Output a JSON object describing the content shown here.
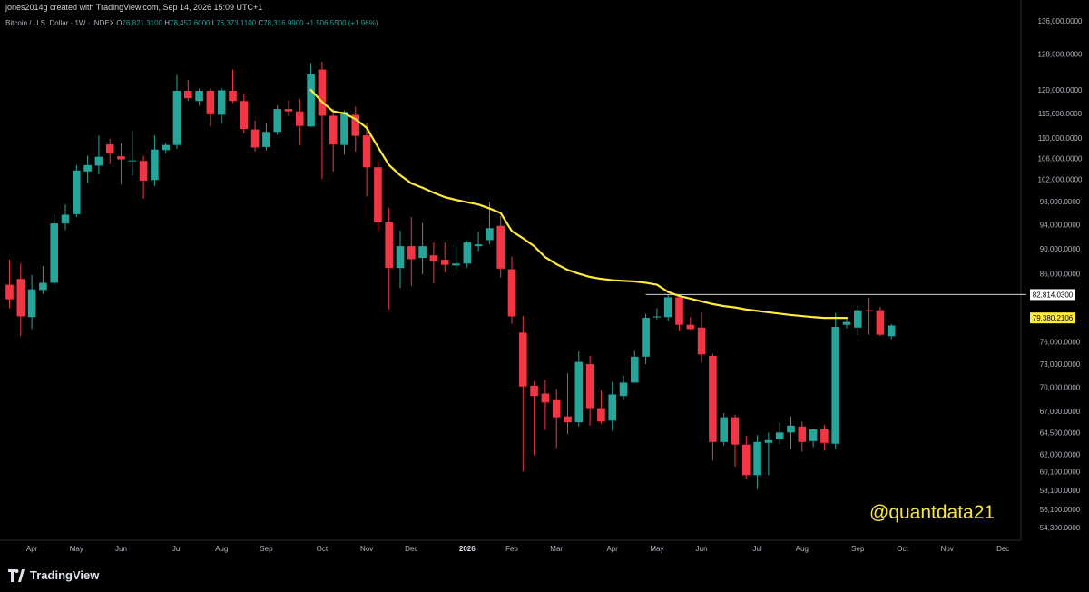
{
  "header": {
    "creator_line": "jones2014g created with TradingView.com, Sep 14, 2026 15:09 UTC+1",
    "symbol": "Bitcoin / U.S. Dollar · 1W · INDEX",
    "open_label": "O",
    "open": "76,821.3100",
    "high_label": "H",
    "high": "78,457.6000",
    "low_label": "L",
    "low": "76,373.1100",
    "close_label": "C",
    "close": "78,316.9900",
    "change": "+1,506.5500 (+1.96%)"
  },
  "footer": {
    "brand": "TradingView",
    "brand_icon": "tradingview-logo-icon"
  },
  "watermark": "@quantdata21",
  "colors": {
    "up": "#26a69a",
    "down": "#f23645",
    "ma": "#ffeb3b",
    "level_line": "#d1d4dc",
    "axis_text": "#b2b5be"
  },
  "chart_data": {
    "type": "candlestick",
    "title": "Bitcoin / U.S. Dollar · 1W · INDEX",
    "y_scale": "log",
    "ylim": [
      53500,
      138000
    ],
    "y_ticks": [
      {
        "value": 136000,
        "label": "136,000.0000"
      },
      {
        "value": 128000,
        "label": "128,000.0000"
      },
      {
        "value": 120000,
        "label": "120,000.0000"
      },
      {
        "value": 115000,
        "label": "115,000.0000"
      },
      {
        "value": 110000,
        "label": "110,000.0000"
      },
      {
        "value": 106000,
        "label": "106,000.0000"
      },
      {
        "value": 102000,
        "label": "102,000.0000"
      },
      {
        "value": 98000,
        "label": "98,000.0000"
      },
      {
        "value": 94000,
        "label": "94,000.0000"
      },
      {
        "value": 90000,
        "label": "90,000.0000"
      },
      {
        "value": 86000,
        "label": "86,000.0000"
      },
      {
        "value": 76000,
        "label": "76,000.0000"
      },
      {
        "value": 73000,
        "label": "73,000.0000"
      },
      {
        "value": 70000,
        "label": "70,000.0000"
      },
      {
        "value": 67000,
        "label": "67,000.0000"
      },
      {
        "value": 64500,
        "label": "64,500.0000"
      },
      {
        "value": 62000,
        "label": "62,000.0000"
      },
      {
        "value": 60100,
        "label": "60,100.0000"
      },
      {
        "value": 58100,
        "label": "58,100.0000"
      },
      {
        "value": 56100,
        "label": "56,100.0000"
      },
      {
        "value": 54300,
        "label": "54,300.0000"
      }
    ],
    "x_ticks": [
      {
        "index": 2,
        "label": "Apr"
      },
      {
        "index": 6,
        "label": "May"
      },
      {
        "index": 10,
        "label": "Jun"
      },
      {
        "index": 15,
        "label": "Jul"
      },
      {
        "index": 19,
        "label": "Aug"
      },
      {
        "index": 23,
        "label": "Sep"
      },
      {
        "index": 28,
        "label": "Oct"
      },
      {
        "index": 32,
        "label": "Nov"
      },
      {
        "index": 36,
        "label": "Dec"
      },
      {
        "index": 41,
        "label": "2026",
        "bold": true
      },
      {
        "index": 45,
        "label": "Feb"
      },
      {
        "index": 49,
        "label": "Mar"
      },
      {
        "index": 54,
        "label": "Apr"
      },
      {
        "index": 58,
        "label": "May"
      },
      {
        "index": 62,
        "label": "Jun"
      },
      {
        "index": 67,
        "label": "Jul"
      },
      {
        "index": 71,
        "label": "Aug"
      },
      {
        "index": 76,
        "label": "Sep"
      },
      {
        "index": 80,
        "label": "Oct"
      },
      {
        "index": 84,
        "label": "Nov"
      },
      {
        "index": 89,
        "label": "Dec"
      }
    ],
    "candles": [
      {
        "o": 84300,
        "h": 88200,
        "l": 80800,
        "c": 82100
      },
      {
        "o": 85200,
        "h": 87600,
        "l": 76800,
        "c": 79600
      },
      {
        "o": 79500,
        "h": 85800,
        "l": 77800,
        "c": 83600
      },
      {
        "o": 83500,
        "h": 87200,
        "l": 82900,
        "c": 84600
      },
      {
        "o": 84600,
        "h": 95800,
        "l": 84200,
        "c": 94200
      },
      {
        "o": 94200,
        "h": 97500,
        "l": 93100,
        "c": 95700
      },
      {
        "o": 95800,
        "h": 104700,
        "l": 95300,
        "c": 103700
      },
      {
        "o": 103500,
        "h": 106500,
        "l": 101400,
        "c": 104700
      },
      {
        "o": 104600,
        "h": 110500,
        "l": 103000,
        "c": 106300
      },
      {
        "o": 108700,
        "h": 109800,
        "l": 104900,
        "c": 107000
      },
      {
        "o": 106400,
        "h": 108900,
        "l": 101100,
        "c": 105800
      },
      {
        "o": 105600,
        "h": 111400,
        "l": 102800,
        "c": 105600
      },
      {
        "o": 105500,
        "h": 106500,
        "l": 98500,
        "c": 101800
      },
      {
        "o": 101900,
        "h": 110500,
        "l": 100800,
        "c": 107700
      },
      {
        "o": 107600,
        "h": 108900,
        "l": 106900,
        "c": 108600
      },
      {
        "o": 108600,
        "h": 123300,
        "l": 107800,
        "c": 119800
      },
      {
        "o": 119800,
        "h": 122200,
        "l": 117600,
        "c": 118200
      },
      {
        "o": 117600,
        "h": 120300,
        "l": 116600,
        "c": 119800
      },
      {
        "o": 119800,
        "h": 120300,
        "l": 112300,
        "c": 114800
      },
      {
        "o": 114700,
        "h": 120400,
        "l": 112800,
        "c": 119900
      },
      {
        "o": 119800,
        "h": 124500,
        "l": 117200,
        "c": 117600
      },
      {
        "o": 117600,
        "h": 119000,
        "l": 110900,
        "c": 111800
      },
      {
        "o": 111700,
        "h": 113500,
        "l": 107300,
        "c": 108100
      },
      {
        "o": 108200,
        "h": 112900,
        "l": 107500,
        "c": 111200
      },
      {
        "o": 111200,
        "h": 116700,
        "l": 110600,
        "c": 115900
      },
      {
        "o": 115900,
        "h": 117700,
        "l": 114400,
        "c": 115400
      },
      {
        "o": 115400,
        "h": 118000,
        "l": 108600,
        "c": 112400
      },
      {
        "o": 112300,
        "h": 126000,
        "l": 112200,
        "c": 123400
      },
      {
        "o": 124500,
        "h": 126300,
        "l": 102100,
        "c": 114500
      },
      {
        "o": 114500,
        "h": 116000,
        "l": 103500,
        "c": 108700
      },
      {
        "o": 108600,
        "h": 115600,
        "l": 106700,
        "c": 115300
      },
      {
        "o": 114700,
        "h": 116400,
        "l": 107300,
        "c": 110400
      },
      {
        "o": 110500,
        "h": 113000,
        "l": 98900,
        "c": 104300
      },
      {
        "o": 104300,
        "h": 105500,
        "l": 92800,
        "c": 94400
      },
      {
        "o": 94400,
        "h": 96900,
        "l": 80600,
        "c": 86900
      },
      {
        "o": 86900,
        "h": 93000,
        "l": 83800,
        "c": 90400
      },
      {
        "o": 90400,
        "h": 95300,
        "l": 84100,
        "c": 88300
      },
      {
        "o": 88500,
        "h": 94300,
        "l": 85900,
        "c": 90400
      },
      {
        "o": 88900,
        "h": 91000,
        "l": 84500,
        "c": 88000
      },
      {
        "o": 88200,
        "h": 91000,
        "l": 86200,
        "c": 87400
      },
      {
        "o": 87300,
        "h": 90500,
        "l": 86500,
        "c": 87600
      },
      {
        "o": 87600,
        "h": 91200,
        "l": 87000,
        "c": 91000
      },
      {
        "o": 90400,
        "h": 92800,
        "l": 89600,
        "c": 90700
      },
      {
        "o": 91400,
        "h": 97900,
        "l": 90700,
        "c": 93400
      },
      {
        "o": 93800,
        "h": 95500,
        "l": 85400,
        "c": 86800
      },
      {
        "o": 86700,
        "h": 88700,
        "l": 78500,
        "c": 79600
      },
      {
        "o": 77300,
        "h": 79700,
        "l": 60100,
        "c": 70100
      },
      {
        "o": 70200,
        "h": 70800,
        "l": 61900,
        "c": 68900
      },
      {
        "o": 69200,
        "h": 70900,
        "l": 64800,
        "c": 68100
      },
      {
        "o": 68500,
        "h": 69800,
        "l": 62700,
        "c": 66300
      },
      {
        "o": 66400,
        "h": 71800,
        "l": 64300,
        "c": 65700
      },
      {
        "o": 65700,
        "h": 74700,
        "l": 65200,
        "c": 73300
      },
      {
        "o": 73000,
        "h": 74100,
        "l": 65300,
        "c": 67400
      },
      {
        "o": 67400,
        "h": 69600,
        "l": 65500,
        "c": 65800
      },
      {
        "o": 65900,
        "h": 70700,
        "l": 64700,
        "c": 69100
      },
      {
        "o": 68900,
        "h": 71500,
        "l": 68500,
        "c": 70600
      },
      {
        "o": 70600,
        "h": 74800,
        "l": 70600,
        "c": 74000
      },
      {
        "o": 74000,
        "h": 80000,
        "l": 73000,
        "c": 79400
      },
      {
        "o": 79500,
        "h": 80800,
        "l": 79200,
        "c": 79600
      },
      {
        "o": 79500,
        "h": 82800,
        "l": 79000,
        "c": 82400
      },
      {
        "o": 82400,
        "h": 82800,
        "l": 77600,
        "c": 78400
      },
      {
        "o": 78400,
        "h": 79500,
        "l": 77700,
        "c": 77800
      },
      {
        "o": 78000,
        "h": 80200,
        "l": 73200,
        "c": 74300
      },
      {
        "o": 74100,
        "h": 74400,
        "l": 61300,
        "c": 63400
      },
      {
        "o": 63400,
        "h": 66800,
        "l": 63000,
        "c": 66300
      },
      {
        "o": 66300,
        "h": 66600,
        "l": 60600,
        "c": 63100
      },
      {
        "o": 63100,
        "h": 64100,
        "l": 59300,
        "c": 59700
      },
      {
        "o": 59700,
        "h": 64200,
        "l": 58200,
        "c": 63400
      },
      {
        "o": 63300,
        "h": 64500,
        "l": 59700,
        "c": 63600
      },
      {
        "o": 63700,
        "h": 65700,
        "l": 63200,
        "c": 64500
      },
      {
        "o": 64500,
        "h": 66400,
        "l": 62600,
        "c": 65300
      },
      {
        "o": 65200,
        "h": 65800,
        "l": 62300,
        "c": 63400
      },
      {
        "o": 63500,
        "h": 64900,
        "l": 62800,
        "c": 64900
      },
      {
        "o": 64900,
        "h": 65400,
        "l": 62400,
        "c": 63300
      },
      {
        "o": 63200,
        "h": 80100,
        "l": 62600,
        "c": 78100
      },
      {
        "o": 78400,
        "h": 79500,
        "l": 77900,
        "c": 78800
      },
      {
        "o": 78000,
        "h": 81100,
        "l": 76900,
        "c": 80500
      },
      {
        "o": 80500,
        "h": 82300,
        "l": 77000,
        "c": 80400
      },
      {
        "o": 80500,
        "h": 81000,
        "l": 76800,
        "c": 77000
      },
      {
        "o": 76800,
        "h": 78500,
        "l": 76400,
        "c": 78300
      }
    ],
    "moving_average": {
      "start_index": 27,
      "values": [
        120000,
        117400,
        115400,
        115000,
        113800,
        112000,
        108200,
        104700,
        102800,
        101300,
        100500,
        99600,
        98800,
        98300,
        97900,
        97500,
        96800,
        96000,
        92900,
        91700,
        90400,
        88600,
        87500,
        86600,
        86000,
        85500,
        85200,
        85000,
        84900,
        84800,
        84600,
        84300,
        83200,
        82600,
        82200,
        81800,
        81400,
        81100,
        80900,
        80600,
        80400,
        80200,
        80000,
        79800,
        79650,
        79500,
        79380,
        79380,
        79380
      ]
    },
    "horizontal_line": {
      "value": 82814.03,
      "label": "82,814.0300",
      "start_index": 57
    },
    "last_value": {
      "value": 79380.2106,
      "label": "79,380.2106"
    }
  }
}
